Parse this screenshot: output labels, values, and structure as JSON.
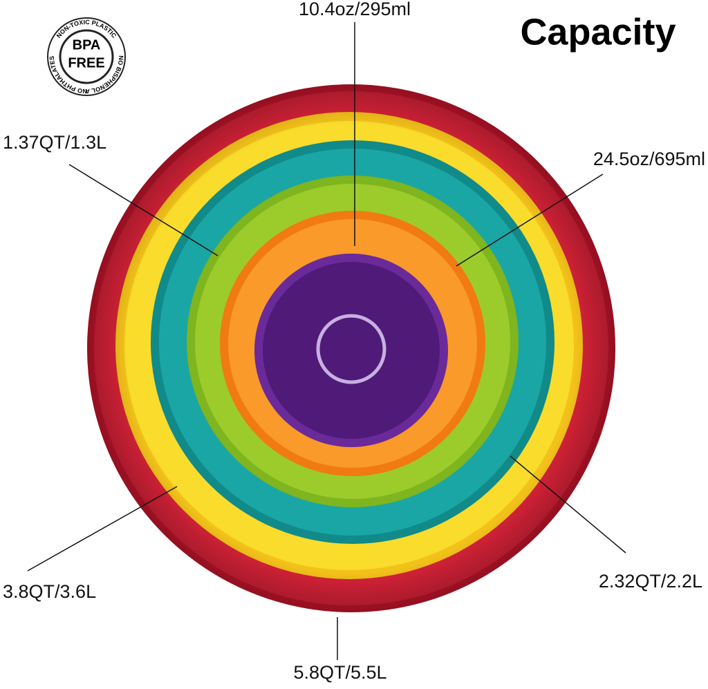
{
  "title": "Capacity",
  "badge": {
    "line1": "BPA",
    "line2": "FREE",
    "top_arc": "NON-TOXIC PLASTIC",
    "right_arc": "NO BISPHENOL A",
    "left_arc": "NO PHTHALATES"
  },
  "labels": [
    "10.4oz/295ml",
    "24.5oz/695ml",
    "1.37QT/1.3L",
    "2.32QT/2.2L",
    "3.8QT/3.6L",
    "5.8QT/5.5L"
  ]
}
